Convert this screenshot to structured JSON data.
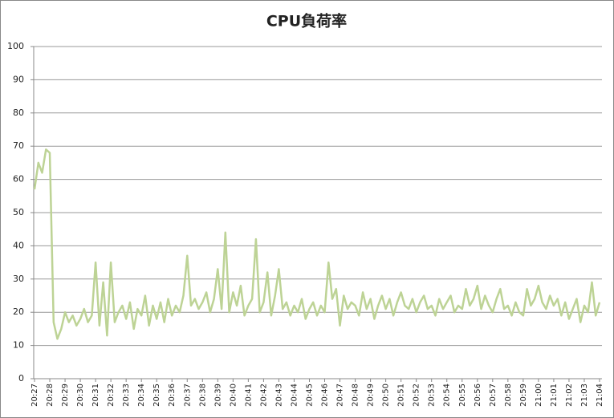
{
  "chart_data": {
    "type": "line",
    "title": "CPU負荷率",
    "categories": [
      "20:27",
      null,
      null,
      null,
      "20:28",
      null,
      null,
      null,
      "20:29",
      null,
      null,
      null,
      "20:30",
      null,
      null,
      null,
      "20:31",
      null,
      null,
      null,
      "20:32",
      null,
      null,
      null,
      "20:33",
      null,
      null,
      null,
      "20:34",
      null,
      null,
      null,
      "20:35",
      null,
      null,
      null,
      "20:36",
      null,
      null,
      null,
      "20:37",
      null,
      null,
      null,
      "20:38",
      null,
      null,
      null,
      "20:39",
      null,
      null,
      null,
      "20:40",
      null,
      null,
      null,
      "20:41",
      null,
      null,
      null,
      "20:42",
      null,
      null,
      null,
      "20:43",
      null,
      null,
      null,
      "20:44",
      null,
      null,
      null,
      "20:45",
      null,
      null,
      null,
      "20:46",
      null,
      null,
      null,
      "20:47",
      null,
      null,
      null,
      "20:48",
      null,
      null,
      null,
      "20:49",
      null,
      null,
      null,
      "20:50",
      null,
      null,
      null,
      "20:51",
      null,
      null,
      null,
      "20:52",
      null,
      null,
      null,
      "20:53",
      null,
      null,
      null,
      "20:54",
      null,
      null,
      null,
      "20:55",
      null,
      null,
      null,
      "20:56",
      null,
      null,
      null,
      "20:57",
      null,
      null,
      null,
      "20:58",
      null,
      null,
      null,
      "20:59",
      null,
      null,
      null,
      "21:00",
      null,
      null,
      null,
      "21:01",
      null,
      null,
      null,
      "21:02",
      null,
      null,
      null,
      "21:03",
      null,
      null,
      null,
      "21:04"
    ],
    "values": [
      57,
      65,
      62,
      69,
      68,
      17,
      12,
      15,
      20,
      17,
      19,
      16,
      18,
      21,
      17,
      19,
      35,
      16,
      29,
      13,
      35,
      17,
      20,
      22,
      18,
      23,
      15,
      21,
      19,
      25,
      16,
      22,
      18,
      23,
      17,
      24,
      19,
      22,
      20,
      25,
      37,
      22,
      24,
      21,
      23,
      26,
      20,
      24,
      33,
      21,
      44,
      20,
      26,
      22,
      28,
      19,
      22,
      24,
      42,
      20,
      23,
      32,
      19,
      25,
      33,
      21,
      23,
      19,
      22,
      20,
      24,
      18,
      21,
      23,
      19,
      22,
      20,
      35,
      24,
      27,
      16,
      25,
      21,
      23,
      22,
      19,
      26,
      21,
      24,
      18,
      22,
      25,
      21,
      24,
      19,
      23,
      26,
      22,
      21,
      24,
      20,
      23,
      25,
      21,
      22,
      19,
      24,
      21,
      23,
      25,
      20,
      22,
      21,
      27,
      22,
      24,
      28,
      21,
      25,
      22,
      20,
      24,
      27,
      21,
      22,
      19,
      23,
      20,
      19,
      27,
      22,
      24,
      28,
      23,
      21,
      25,
      22,
      24,
      19,
      23,
      18,
      21,
      24,
      17,
      22,
      20,
      29,
      19,
      23
    ],
    "color": "#bdd395",
    "ylim": [
      0,
      100
    ],
    "yticks": [
      0,
      10,
      20,
      30,
      40,
      50,
      60,
      70,
      80,
      90,
      100
    ],
    "grid": true
  }
}
